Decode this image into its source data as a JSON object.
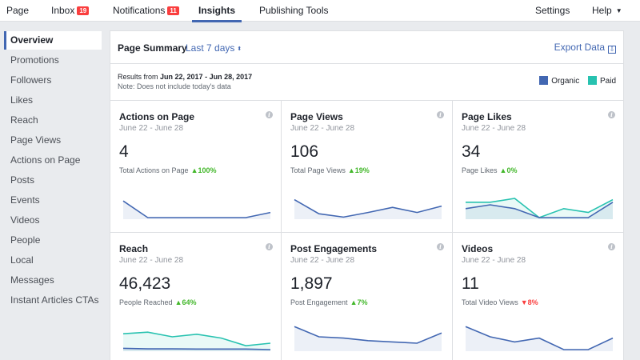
{
  "topnav": {
    "items": [
      {
        "label": "Page"
      },
      {
        "label": "Inbox",
        "badge": "19"
      },
      {
        "label": "Notifications",
        "badge": "11"
      },
      {
        "label": "Insights"
      },
      {
        "label": "Publishing Tools"
      }
    ],
    "settings": "Settings",
    "help": "Help",
    "help_caret": "▼"
  },
  "sidebar": {
    "items": [
      {
        "label": "Overview"
      },
      {
        "label": "Promotions"
      },
      {
        "label": "Followers"
      },
      {
        "label": "Likes"
      },
      {
        "label": "Reach"
      },
      {
        "label": "Page Views"
      },
      {
        "label": "Actions on Page"
      },
      {
        "label": "Posts"
      },
      {
        "label": "Events"
      },
      {
        "label": "Videos"
      },
      {
        "label": "People"
      },
      {
        "label": "Local"
      },
      {
        "label": "Messages"
      },
      {
        "label": "Instant Articles CTAs"
      }
    ]
  },
  "summary": {
    "title": "Page Summary",
    "range": "Last 7 days",
    "range_caret": "⬍",
    "export": "Export Data",
    "export_icon": "⇩",
    "results_prefix": "Results from",
    "results_range": "Jun 22, 2017 - Jun 28, 2017",
    "note": "Note: Does not include today's data",
    "legend": [
      {
        "label": "Organic",
        "color": "#4267b2"
      },
      {
        "label": "Paid",
        "color": "#28c2b0"
      }
    ]
  },
  "colors": {
    "organic": "#4267b2",
    "paid": "#28c2b0",
    "accent": "#4267b2",
    "up": "#42b72a",
    "down": "#fa3e3e"
  },
  "cards": [
    {
      "title": "Actions on Page",
      "range": "June 22 - June 28",
      "value": "4",
      "sub": "Total Actions on Page",
      "delta": "▲100%",
      "trend": "up",
      "organic": [
        0.65,
        0.0,
        0.0,
        0.0,
        0.0,
        0.0,
        0.2
      ],
      "paid": null
    },
    {
      "title": "Page Views",
      "range": "June 22 - June 28",
      "value": "106",
      "sub": "Total Page Views",
      "delta": "▲19%",
      "trend": "up",
      "organic": [
        0.7,
        0.15,
        0.02,
        0.2,
        0.4,
        0.2,
        0.45
      ],
      "paid": null
    },
    {
      "title": "Page Likes",
      "range": "June 22 - June 28",
      "value": "34",
      "sub": "Page Likes",
      "delta": "▲0%",
      "trend": "up",
      "organic": [
        0.35,
        0.5,
        0.35,
        0.0,
        0.0,
        0.0,
        0.6
      ],
      "paid": [
        0.6,
        0.6,
        0.75,
        0.0,
        0.35,
        0.2,
        0.7
      ]
    },
    {
      "title": "Reach",
      "range": "June 22 - June 28",
      "value": "46,423",
      "sub": "People Reached",
      "delta": "▲64%",
      "trend": "up",
      "organic": [
        0.05,
        0.03,
        0.03,
        0.02,
        0.02,
        0.02,
        0.0
      ],
      "paid": [
        0.62,
        0.68,
        0.5,
        0.6,
        0.45,
        0.15,
        0.25
      ]
    },
    {
      "title": "Post Engagements",
      "range": "June 22 - June 28",
      "value": "1,897",
      "sub": "Post Engagement",
      "delta": "▲7%",
      "trend": "up",
      "organic": [
        0.9,
        0.5,
        0.45,
        0.35,
        0.3,
        0.25,
        0.65
      ],
      "paid": null
    },
    {
      "title": "Videos",
      "range": "June 22 - June 28",
      "value": "11",
      "sub": "Total Video Views",
      "delta": "▼8%",
      "trend": "down",
      "organic": [
        0.9,
        0.5,
        0.3,
        0.45,
        0.0,
        0.0,
        0.45
      ],
      "paid": null
    }
  ]
}
